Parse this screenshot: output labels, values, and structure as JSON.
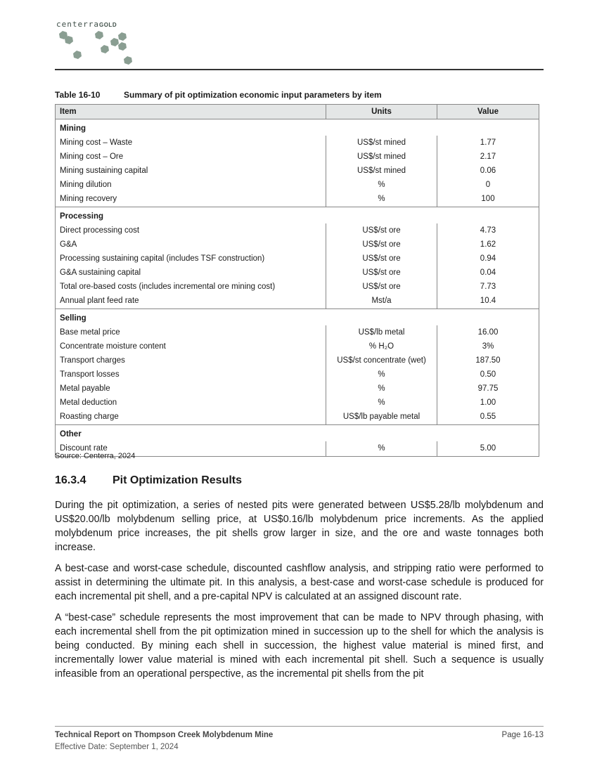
{
  "header": {
    "logo_text": "centerra",
    "logo_text_bold": "GOLD",
    "brand_color": "#8a9e92"
  },
  "table": {
    "caption_number": "Table 16-10",
    "caption_title": "Summary of pit optimization economic input parameters by item",
    "columns": [
      "Item",
      "Units",
      "Value"
    ],
    "sections": [
      {
        "name": "Mining",
        "rows": [
          [
            "Mining cost – Waste",
            "US$/st mined",
            "1.77"
          ],
          [
            "Mining cost – Ore",
            "US$/st mined",
            "2.17"
          ],
          [
            "Mining sustaining capital",
            "US$/st mined",
            "0.06"
          ],
          [
            "Mining dilution",
            "%",
            "0"
          ],
          [
            "Mining recovery",
            "%",
            "100"
          ]
        ]
      },
      {
        "name": "Processing",
        "rows": [
          [
            "Direct processing cost",
            "US$/st ore",
            "4.73"
          ],
          [
            "G&A",
            "US$/st ore",
            "1.62"
          ],
          [
            "Processing sustaining capital (includes TSF construction)",
            "US$/st ore",
            "0.94"
          ],
          [
            "G&A sustaining capital",
            "US$/st ore",
            "0.04"
          ],
          [
            "Total ore-based costs (includes incremental ore mining cost)",
            "US$/st ore",
            "7.73"
          ],
          [
            "Annual plant feed rate",
            "Mst/a",
            "10.4"
          ]
        ]
      },
      {
        "name": "Selling",
        "rows": [
          [
            "Base metal price",
            "US$/lb metal",
            "16.00"
          ],
          [
            "Concentrate moisture content",
            "% H₂O",
            "3%"
          ],
          [
            "Transport charges",
            "US$/st concentrate (wet)",
            "187.50"
          ],
          [
            "Transport losses",
            "%",
            "0.50"
          ],
          [
            "Metal payable",
            "%",
            "97.75"
          ],
          [
            "Metal deduction",
            "%",
            "1.00"
          ],
          [
            "Roasting charge",
            "US$/lb payable metal",
            "0.55"
          ]
        ]
      },
      {
        "name": "Other",
        "rows": [
          [
            "Discount rate",
            "%",
            "5.00"
          ]
        ]
      }
    ],
    "source": "Source: Centerra, 2024"
  },
  "section": {
    "number": "16.3.4",
    "title": "Pit Optimization Results"
  },
  "paragraphs": [
    "During the pit optimization, a series of nested pits were generated between US$5.28/lb molybdenum and US$20.00/lb molybdenum selling price, at US$0.16/lb molybdenum price increments. As the applied molybdenum price increases, the pit shells grow larger in size, and the ore and waste tonnages both increase.",
    "A best-case and worst-case schedule, discounted cashflow analysis, and stripping ratio were performed to assist in determining the ultimate pit. In this analysis, a best-case and worst-case schedule is produced for each incremental pit shell, and a pre-capital NPV is calculated at an assigned discount rate.",
    "A “best-case” schedule represents the most improvement that can be made to NPV through phasing, with each incremental shell from the pit optimization mined in succession up to the shell for which the analysis is being conducted. By mining each shell in succession, the highest value material is mined first, and incrementally lower value material is mined with each incremental pit shell. Such a sequence is usually infeasible from an operational perspective, as the incremental pit shells from the pit"
  ],
  "footer": {
    "report_title": "Technical Report on Thompson Creek Molybdenum Mine",
    "effective_date": "Effective Date: September 1, 2024",
    "page": "Page 16-13"
  }
}
